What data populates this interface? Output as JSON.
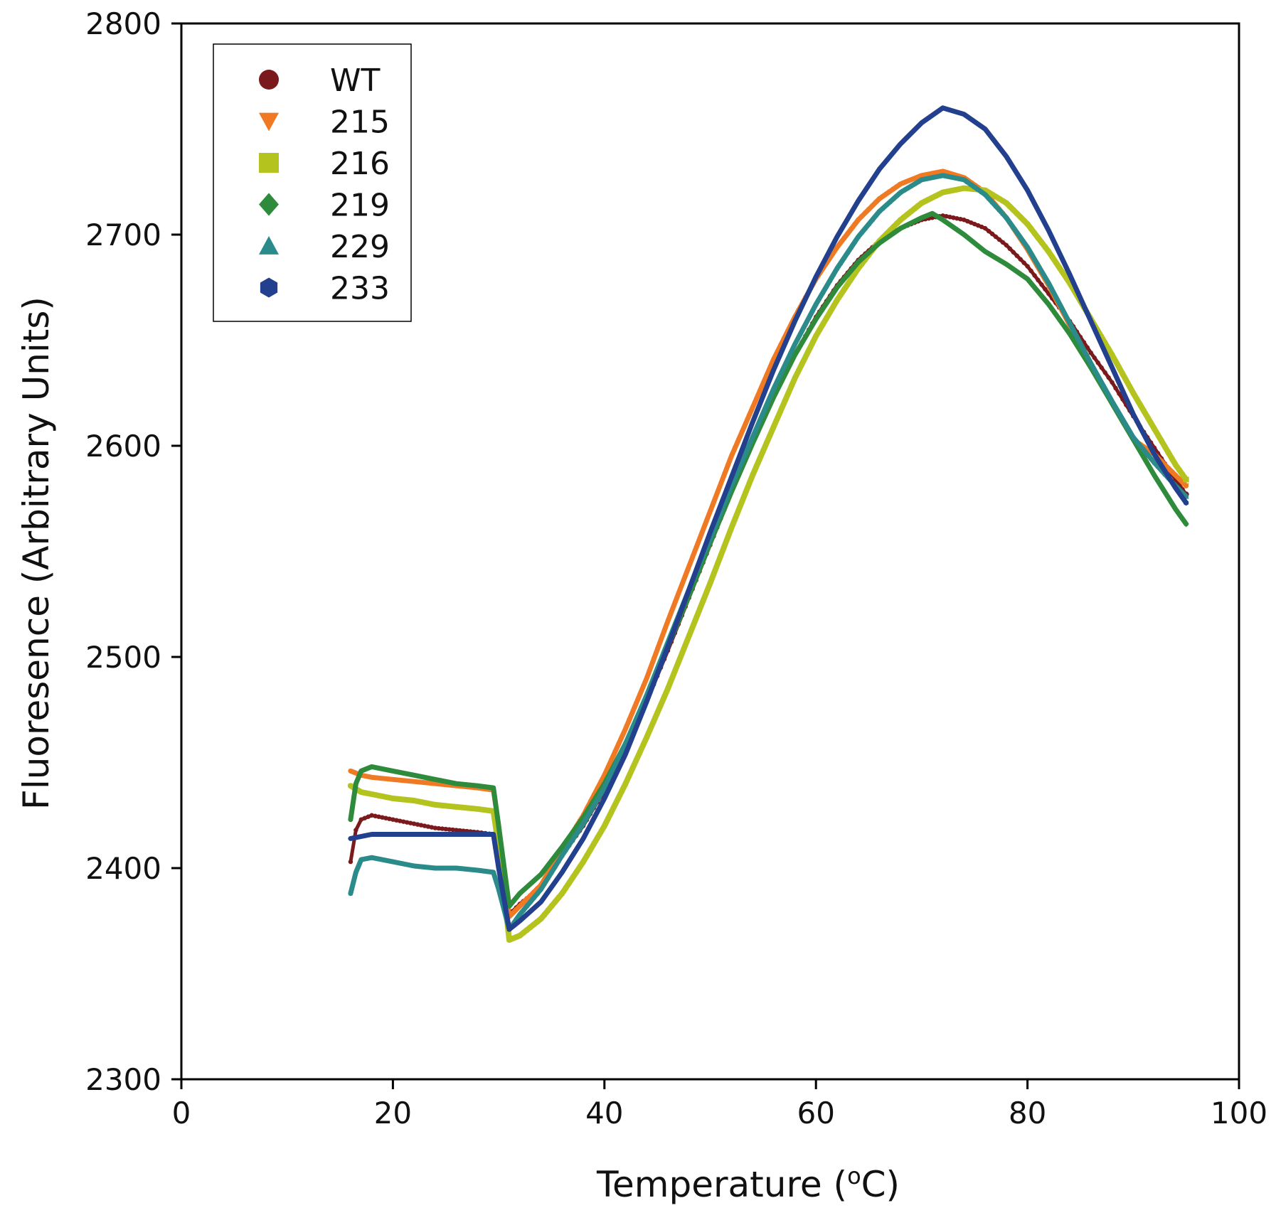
{
  "chart_data": {
    "type": "line",
    "title": "",
    "xlabel": "Temperature (oC)",
    "xlabel_parts": {
      "before": "Temperature (",
      "sup": "o",
      "after": "C)"
    },
    "ylabel": "Fluoresence (Arbitrary Units)",
    "xlim": [
      0,
      100
    ],
    "ylim": [
      2300,
      2800
    ],
    "x_ticks": [
      0,
      20,
      40,
      60,
      80,
      100
    ],
    "y_ticks": [
      2300,
      2400,
      2500,
      2600,
      2700,
      2800
    ],
    "x_tick_labels": [
      "0",
      "20",
      "40",
      "60",
      "80",
      "100"
    ],
    "y_tick_labels": [
      "2300",
      "2400",
      "2500",
      "2600",
      "2700",
      "2800"
    ],
    "grid": false,
    "legend_position": "top-left",
    "series": [
      {
        "name": "WT",
        "color": "#7a1a1c",
        "marker": "circle",
        "points": [
          [
            16,
            2403
          ],
          [
            16.5,
            2418
          ],
          [
            17,
            2423
          ],
          [
            18,
            2425
          ],
          [
            20,
            2423
          ],
          [
            22,
            2421
          ],
          [
            24,
            2419
          ],
          [
            26,
            2418
          ],
          [
            28,
            2417
          ],
          [
            29.5,
            2416
          ],
          [
            30,
            2405
          ],
          [
            31,
            2378
          ],
          [
            32,
            2383
          ],
          [
            34,
            2391
          ],
          [
            36,
            2406
          ],
          [
            38,
            2420
          ],
          [
            40,
            2437
          ],
          [
            42,
            2457
          ],
          [
            44,
            2479
          ],
          [
            46,
            2503
          ],
          [
            48,
            2528
          ],
          [
            50,
            2553
          ],
          [
            52,
            2578
          ],
          [
            54,
            2601
          ],
          [
            56,
            2623
          ],
          [
            58,
            2643
          ],
          [
            60,
            2661
          ],
          [
            62,
            2676
          ],
          [
            64,
            2688
          ],
          [
            66,
            2697
          ],
          [
            68,
            2703
          ],
          [
            70,
            2707
          ],
          [
            71,
            2708
          ],
          [
            72,
            2709
          ],
          [
            74,
            2707
          ],
          [
            76,
            2703
          ],
          [
            78,
            2695
          ],
          [
            80,
            2685
          ],
          [
            82,
            2672
          ],
          [
            84,
            2659
          ],
          [
            86,
            2644
          ],
          [
            88,
            2630
          ],
          [
            90,
            2614
          ],
          [
            92,
            2599
          ],
          [
            94,
            2584
          ],
          [
            95,
            2577
          ]
        ]
      },
      {
        "name": "215",
        "color": "#f07a24",
        "marker": "triangle-down",
        "points": [
          [
            16,
            2446
          ],
          [
            17,
            2444
          ],
          [
            18,
            2443
          ],
          [
            20,
            2442
          ],
          [
            22,
            2441
          ],
          [
            24,
            2440
          ],
          [
            26,
            2439
          ],
          [
            28,
            2438
          ],
          [
            29.5,
            2437
          ],
          [
            30,
            2420
          ],
          [
            31,
            2377
          ],
          [
            32,
            2382
          ],
          [
            34,
            2392
          ],
          [
            36,
            2409
          ],
          [
            38,
            2425
          ],
          [
            40,
            2444
          ],
          [
            42,
            2466
          ],
          [
            44,
            2490
          ],
          [
            46,
            2517
          ],
          [
            48,
            2543
          ],
          [
            50,
            2569
          ],
          [
            52,
            2595
          ],
          [
            54,
            2618
          ],
          [
            56,
            2641
          ],
          [
            58,
            2661
          ],
          [
            60,
            2679
          ],
          [
            62,
            2694
          ],
          [
            64,
            2707
          ],
          [
            66,
            2717
          ],
          [
            68,
            2724
          ],
          [
            70,
            2728
          ],
          [
            72,
            2730
          ],
          [
            74,
            2727
          ],
          [
            76,
            2720
          ],
          [
            78,
            2708
          ],
          [
            80,
            2693
          ],
          [
            82,
            2676
          ],
          [
            84,
            2657
          ],
          [
            86,
            2638
          ],
          [
            88,
            2620
          ],
          [
            90,
            2603
          ],
          [
            92,
            2596
          ],
          [
            94,
            2586
          ],
          [
            95,
            2581
          ]
        ]
      },
      {
        "name": "216",
        "color": "#b4c31e",
        "marker": "square",
        "points": [
          [
            16,
            2439
          ],
          [
            17,
            2436
          ],
          [
            18,
            2435
          ],
          [
            20,
            2433
          ],
          [
            22,
            2432
          ],
          [
            24,
            2430
          ],
          [
            26,
            2429
          ],
          [
            28,
            2428
          ],
          [
            29.5,
            2427
          ],
          [
            30,
            2410
          ],
          [
            31,
            2366
          ],
          [
            32,
            2368
          ],
          [
            34,
            2376
          ],
          [
            36,
            2388
          ],
          [
            38,
            2403
          ],
          [
            40,
            2420
          ],
          [
            42,
            2440
          ],
          [
            44,
            2462
          ],
          [
            46,
            2485
          ],
          [
            48,
            2510
          ],
          [
            50,
            2535
          ],
          [
            52,
            2561
          ],
          [
            54,
            2586
          ],
          [
            56,
            2609
          ],
          [
            58,
            2632
          ],
          [
            60,
            2652
          ],
          [
            62,
            2669
          ],
          [
            64,
            2684
          ],
          [
            66,
            2697
          ],
          [
            68,
            2707
          ],
          [
            70,
            2715
          ],
          [
            72,
            2720
          ],
          [
            74,
            2722
          ],
          [
            76,
            2721
          ],
          [
            78,
            2715
          ],
          [
            80,
            2705
          ],
          [
            82,
            2692
          ],
          [
            84,
            2677
          ],
          [
            86,
            2660
          ],
          [
            88,
            2643
          ],
          [
            90,
            2625
          ],
          [
            92,
            2608
          ],
          [
            94,
            2591
          ],
          [
            95,
            2584
          ]
        ]
      },
      {
        "name": "219",
        "color": "#2e8b3c",
        "marker": "diamond",
        "points": [
          [
            16,
            2423
          ],
          [
            16.5,
            2440
          ],
          [
            17,
            2446
          ],
          [
            18,
            2448
          ],
          [
            20,
            2446
          ],
          [
            22,
            2444
          ],
          [
            24,
            2442
          ],
          [
            26,
            2440
          ],
          [
            28,
            2439
          ],
          [
            29.5,
            2438
          ],
          [
            30,
            2420
          ],
          [
            31,
            2382
          ],
          [
            32,
            2388
          ],
          [
            34,
            2397
          ],
          [
            36,
            2410
          ],
          [
            38,
            2424
          ],
          [
            40,
            2440
          ],
          [
            42,
            2459
          ],
          [
            44,
            2481
          ],
          [
            46,
            2505
          ],
          [
            48,
            2529
          ],
          [
            50,
            2554
          ],
          [
            52,
            2578
          ],
          [
            54,
            2601
          ],
          [
            56,
            2623
          ],
          [
            58,
            2643
          ],
          [
            60,
            2660
          ],
          [
            62,
            2675
          ],
          [
            64,
            2687
          ],
          [
            66,
            2696
          ],
          [
            68,
            2703
          ],
          [
            70,
            2708
          ],
          [
            71,
            2710
          ],
          [
            72,
            2707
          ],
          [
            74,
            2700
          ],
          [
            76,
            2692
          ],
          [
            78,
            2686
          ],
          [
            80,
            2679
          ],
          [
            82,
            2667
          ],
          [
            84,
            2653
          ],
          [
            86,
            2637
          ],
          [
            88,
            2620
          ],
          [
            90,
            2603
          ],
          [
            92,
            2586
          ],
          [
            94,
            2570
          ],
          [
            95,
            2563
          ]
        ]
      },
      {
        "name": "229",
        "color": "#2b8b8a",
        "marker": "triangle-up",
        "points": [
          [
            16,
            2388
          ],
          [
            16.5,
            2398
          ],
          [
            17,
            2404
          ],
          [
            18,
            2405
          ],
          [
            20,
            2403
          ],
          [
            22,
            2401
          ],
          [
            24,
            2400
          ],
          [
            26,
            2400
          ],
          [
            28,
            2399
          ],
          [
            29.5,
            2398
          ],
          [
            30,
            2390
          ],
          [
            31,
            2371
          ],
          [
            32,
            2378
          ],
          [
            34,
            2390
          ],
          [
            36,
            2406
          ],
          [
            38,
            2421
          ],
          [
            40,
            2438
          ],
          [
            42,
            2459
          ],
          [
            44,
            2482
          ],
          [
            46,
            2507
          ],
          [
            48,
            2532
          ],
          [
            50,
            2556
          ],
          [
            52,
            2581
          ],
          [
            54,
            2604
          ],
          [
            56,
            2627
          ],
          [
            58,
            2648
          ],
          [
            60,
            2667
          ],
          [
            62,
            2684
          ],
          [
            64,
            2699
          ],
          [
            66,
            2711
          ],
          [
            68,
            2720
          ],
          [
            70,
            2726
          ],
          [
            72,
            2728
          ],
          [
            74,
            2726
          ],
          [
            76,
            2719
          ],
          [
            78,
            2708
          ],
          [
            80,
            2694
          ],
          [
            82,
            2677
          ],
          [
            84,
            2658
          ],
          [
            86,
            2639
          ],
          [
            88,
            2621
          ],
          [
            90,
            2604
          ],
          [
            92,
            2592
          ],
          [
            94,
            2581
          ],
          [
            95,
            2576
          ]
        ]
      },
      {
        "name": "233",
        "color": "#23408e",
        "marker": "hexagon",
        "points": [
          [
            16,
            2414
          ],
          [
            17,
            2415
          ],
          [
            18,
            2416
          ],
          [
            20,
            2416
          ],
          [
            22,
            2416
          ],
          [
            24,
            2416
          ],
          [
            26,
            2416
          ],
          [
            28,
            2416
          ],
          [
            29.5,
            2416
          ],
          [
            30,
            2400
          ],
          [
            31,
            2371
          ],
          [
            32,
            2375
          ],
          [
            34,
            2384
          ],
          [
            36,
            2398
          ],
          [
            38,
            2414
          ],
          [
            40,
            2433
          ],
          [
            42,
            2454
          ],
          [
            44,
            2479
          ],
          [
            46,
            2505
          ],
          [
            48,
            2532
          ],
          [
            50,
            2559
          ],
          [
            52,
            2585
          ],
          [
            54,
            2611
          ],
          [
            56,
            2636
          ],
          [
            58,
            2659
          ],
          [
            60,
            2680
          ],
          [
            62,
            2699
          ],
          [
            64,
            2716
          ],
          [
            66,
            2731
          ],
          [
            68,
            2743
          ],
          [
            70,
            2753
          ],
          [
            72,
            2760
          ],
          [
            74,
            2757
          ],
          [
            76,
            2750
          ],
          [
            78,
            2737
          ],
          [
            80,
            2721
          ],
          [
            82,
            2702
          ],
          [
            84,
            2681
          ],
          [
            86,
            2659
          ],
          [
            88,
            2637
          ],
          [
            90,
            2615
          ],
          [
            92,
            2596
          ],
          [
            94,
            2580
          ],
          [
            95,
            2573
          ]
        ]
      }
    ]
  }
}
